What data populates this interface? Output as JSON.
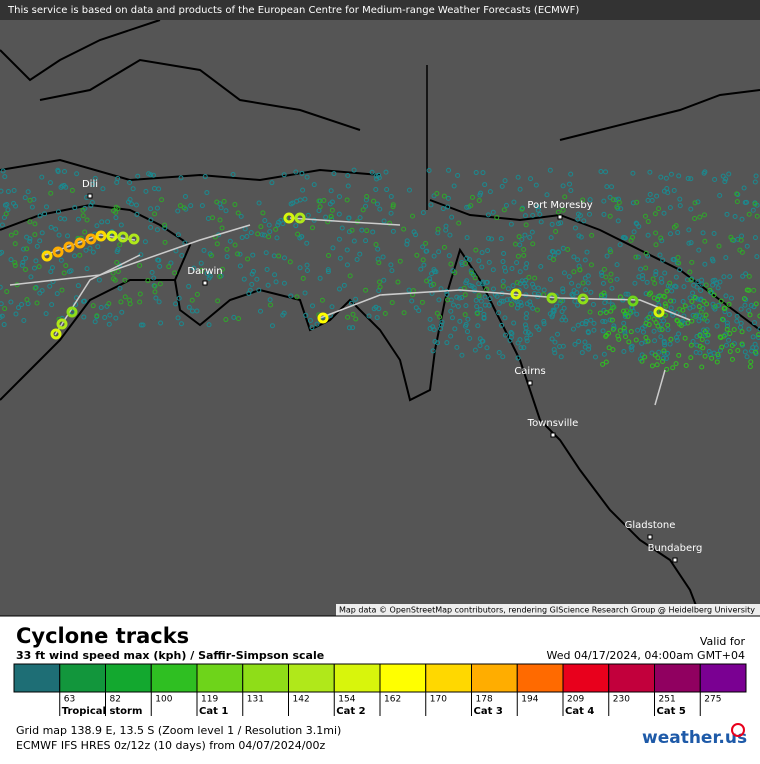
{
  "header": {
    "notice": "This service is based on data and products of the European Centre for Medium-range Weather Forecasts (ECMWF)"
  },
  "map": {
    "cities": [
      "Dili",
      "Darwin",
      "Port Moresby",
      "Cairns",
      "Townsville",
      "Gladstone",
      "Bundaberg"
    ],
    "attribution": "Map data © OpenStreetMap contributors, rendering GIScience Research Group @ Heidelberg University"
  },
  "legend": {
    "title": "Cyclone tracks",
    "subtitle": "33 ft wind speed max (kph) / Saffir-Simpson scale",
    "valid_label": "Valid for",
    "valid_time": "Wed 04/17/2024, 04:00am GMT+04",
    "colors": [
      "#1e6e75",
      "#12963c",
      "#13a82f",
      "#2fbf22",
      "#6ed41a",
      "#8fdd18",
      "#b0e81a",
      "#d8f50c",
      "#ffff00",
      "#ffd800",
      "#ffad00",
      "#ff6a00",
      "#e8001c",
      "#c2003c",
      "#900060",
      "#7a0092"
    ],
    "thresholds": [
      63,
      82,
      100,
      119,
      131,
      142,
      154,
      162,
      170,
      178,
      194,
      209,
      230,
      251,
      275
    ],
    "category_labels": [
      "Tropical storm",
      null,
      null,
      "Cat 1",
      null,
      null,
      "Cat 2",
      null,
      null,
      "Cat 3",
      null,
      "Cat 4",
      null,
      "Cat 5",
      null
    ]
  },
  "footer": {
    "grid": "Grid map 138.9 E, 13.5 S (Zoom level 1 / Resolution 3.1mi)",
    "model": "ECMWF IFS HRES 0z/12z (10 days)  from  04/07/2024/00z",
    "logo": "weather.us"
  }
}
